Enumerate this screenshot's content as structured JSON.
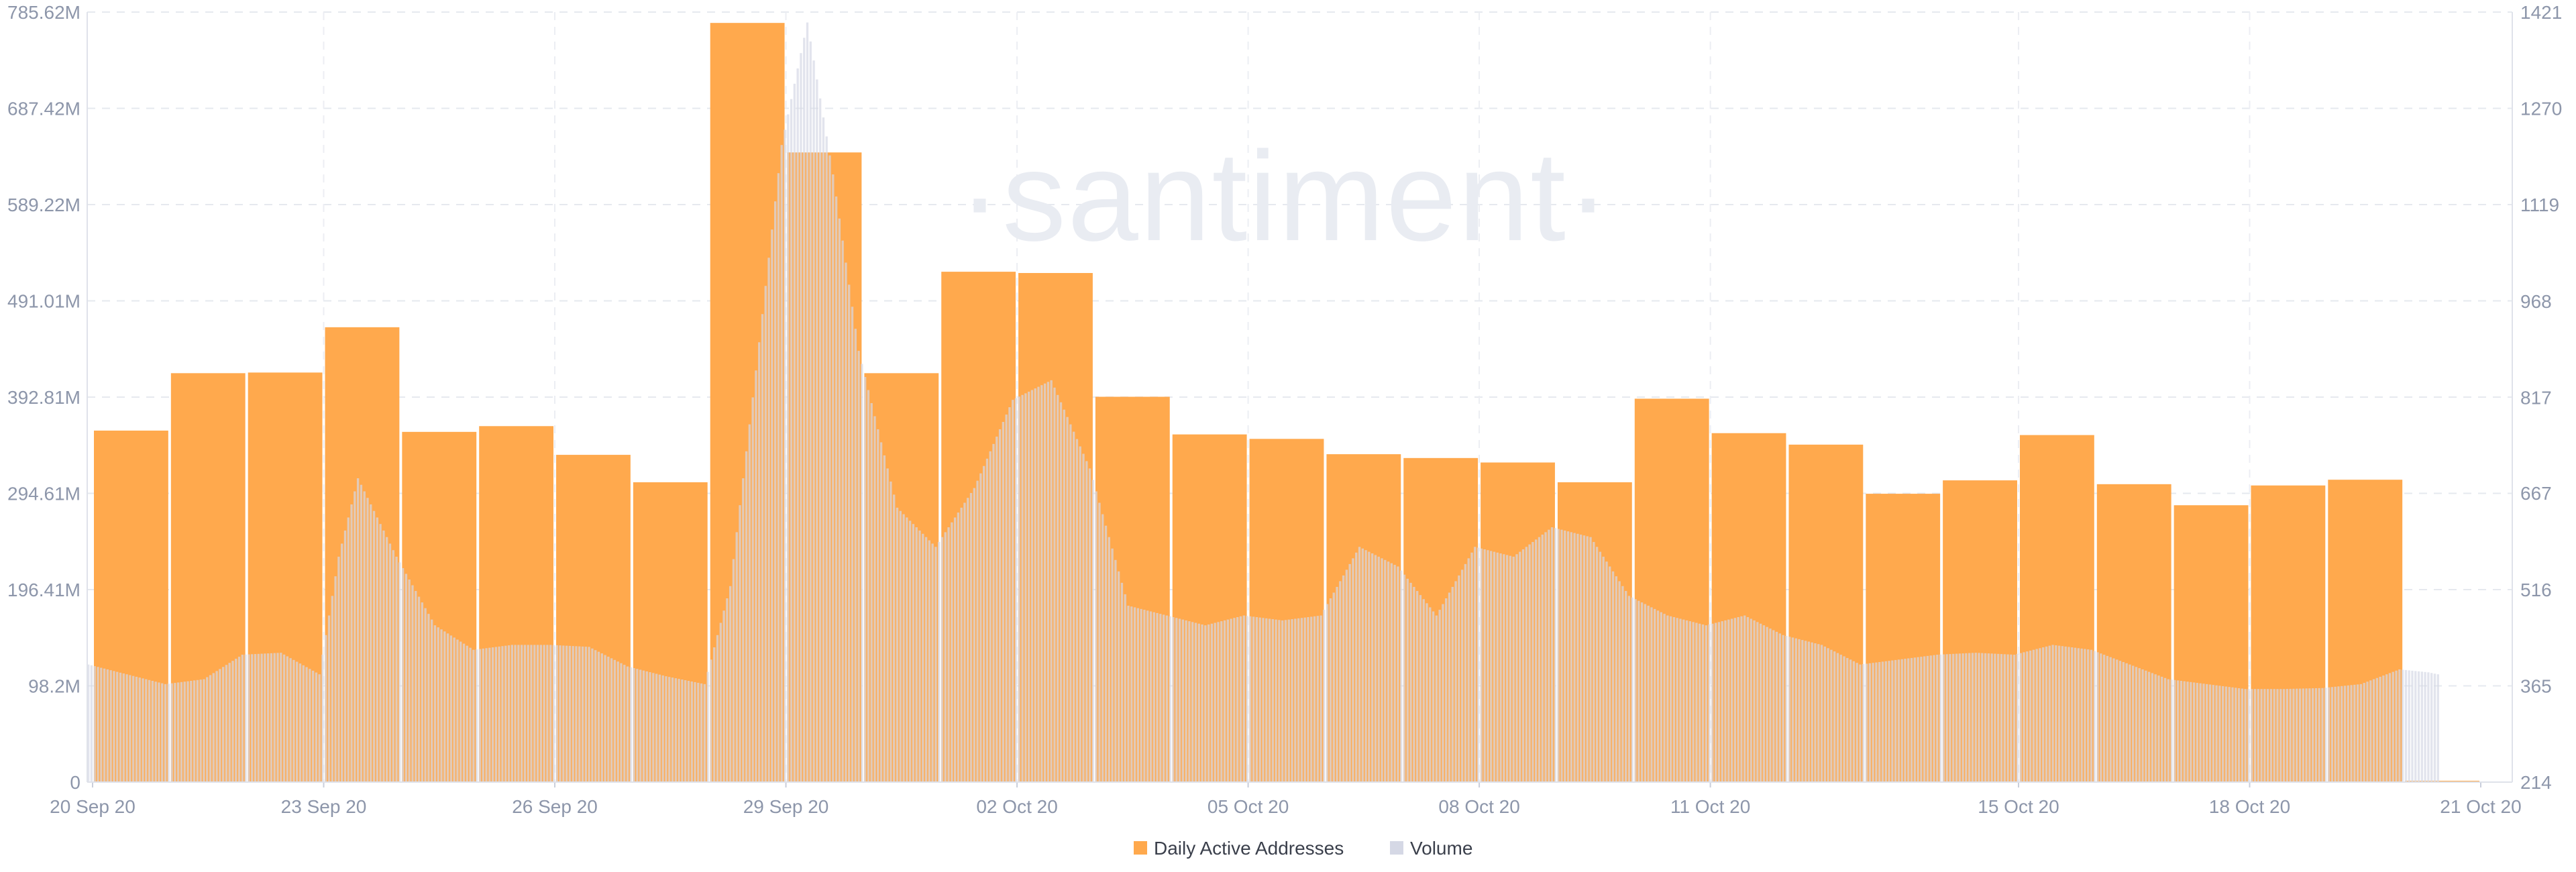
{
  "watermark": "·santiment·",
  "chart_data": {
    "type": "bar",
    "title": "",
    "xlabel": "",
    "ylabel": "",
    "grid": true,
    "legend_position": "bottom-center",
    "left_axis": {
      "series": "Volume",
      "ylim": [
        0,
        785.62
      ],
      "tick_values": [
        0,
        98.2,
        196.41,
        294.61,
        392.81,
        491.01,
        589.22,
        687.42,
        785.62
      ],
      "tick_labels": [
        "0",
        "98.2M",
        "196.41M",
        "294.61M",
        "392.81M",
        "491.01M",
        "589.22M",
        "687.42M",
        "785.62M"
      ]
    },
    "right_axis": {
      "series": "Daily Active Addresses",
      "ylim": [
        214,
        1421
      ],
      "tick_values": [
        214,
        365,
        516,
        667,
        817,
        968,
        1119,
        1270,
        1421
      ],
      "tick_labels": [
        "214",
        "365",
        "516",
        "667",
        "817",
        "968",
        "1119",
        "1270",
        "1421"
      ]
    },
    "x_ticks": [
      "20 Sep 20",
      "23 Sep 20",
      "26 Sep 20",
      "29 Sep 20",
      "02 Oct 20",
      "05 Oct 20",
      "08 Oct 20",
      "11 Oct 20",
      "15 Oct 20",
      "18 Oct 20",
      "21 Oct 20"
    ],
    "daily_dates": [
      "20 Sep 20",
      "21 Sep 20",
      "22 Sep 20",
      "23 Sep 20",
      "24 Sep 20",
      "25 Sep 20",
      "26 Sep 20",
      "27 Sep 20",
      "28 Sep 20",
      "29 Sep 20",
      "30 Sep 20",
      "01 Oct 20",
      "02 Oct 20",
      "03 Oct 20",
      "04 Oct 20",
      "05 Oct 20",
      "06 Oct 20",
      "07 Oct 20",
      "08 Oct 20",
      "09 Oct 20",
      "10 Oct 20",
      "11 Oct 20",
      "12 Oct 20",
      "13 Oct 20",
      "14 Oct 20",
      "15 Oct 20",
      "16 Oct 20",
      "17 Oct 20",
      "18 Oct 20",
      "19 Oct 20",
      "20 Oct 20",
      "21 Oct 20"
    ],
    "series": [
      {
        "name": "Daily Active Addresses",
        "axis": "right",
        "color": "#ffa94d",
        "values": [
          765,
          855,
          856,
          927,
          763,
          772,
          727,
          684,
          1404,
          1201,
          855,
          1014,
          1012,
          818,
          759,
          752,
          728,
          722,
          715,
          684,
          815,
          761,
          743,
          666,
          687,
          758,
          681,
          648,
          679,
          688,
          214,
          null
        ]
      },
      {
        "name": "Volume",
        "axis": "left",
        "color": "#d5d8e5",
        "sample_times": [
          "2020-09-20T00:00",
          "2020-09-20T12:00",
          "2020-09-21T00:00",
          "2020-09-21T12:00",
          "2020-09-22T00:00",
          "2020-09-22T12:00",
          "2020-09-23T00:00",
          "2020-09-23T06:00",
          "2020-09-23T12:00",
          "2020-09-23T18:00",
          "2020-09-24T00:00",
          "2020-09-24T12:00",
          "2020-09-25T00:00",
          "2020-09-25T12:00",
          "2020-09-26T00:00",
          "2020-09-26T12:00",
          "2020-09-27T00:00",
          "2020-09-27T12:00",
          "2020-09-28T00:00",
          "2020-09-28T08:00",
          "2020-09-28T16:00",
          "2020-09-29T00:00",
          "2020-09-29T08:00",
          "2020-09-29T16:00",
          "2020-09-30T00:00",
          "2020-09-30T12:00",
          "2020-10-01T00:00",
          "2020-10-01T12:00",
          "2020-10-02T00:00",
          "2020-10-02T12:00",
          "2020-10-03T00:00",
          "2020-10-03T12:00",
          "2020-10-04T00:00",
          "2020-10-04T12:00",
          "2020-10-05T00:00",
          "2020-10-05T12:00",
          "2020-10-06T00:00",
          "2020-10-06T12:00",
          "2020-10-07T00:00",
          "2020-10-07T12:00",
          "2020-10-08T00:00",
          "2020-10-08T12:00",
          "2020-10-09T00:00",
          "2020-10-09T12:00",
          "2020-10-10T00:00",
          "2020-10-10T12:00",
          "2020-10-11T00:00",
          "2020-10-11T12:00",
          "2020-10-12T00:00",
          "2020-10-12T12:00",
          "2020-10-13T00:00",
          "2020-10-13T12:00",
          "2020-10-14T00:00",
          "2020-10-14T12:00",
          "2020-10-15T00:00",
          "2020-10-15T12:00",
          "2020-10-16T00:00",
          "2020-10-16T12:00",
          "2020-10-17T00:00",
          "2020-10-17T12:00",
          "2020-10-18T00:00",
          "2020-10-18T12:00",
          "2020-10-19T00:00",
          "2020-10-19T12:00",
          "2020-10-20T00:00",
          "2020-10-20T09:00",
          "2020-10-20T12:00"
        ],
        "values": [
          120,
          110,
          100,
          105,
          130,
          132,
          110,
          230,
          310,
          270,
          230,
          160,
          135,
          140,
          140,
          138,
          118,
          108,
          100,
          200,
          420,
          650,
          775,
          620,
          440,
          280,
          240,
          300,
          390,
          410,
          320,
          180,
          170,
          160,
          170,
          165,
          170,
          240,
          220,
          170,
          240,
          230,
          260,
          250,
          190,
          170,
          160,
          170,
          150,
          140,
          120,
          125,
          130,
          132,
          130,
          140,
          135,
          120,
          105,
          100,
          95,
          95,
          96,
          100,
          115,
          112,
          110
        ]
      }
    ]
  }
}
